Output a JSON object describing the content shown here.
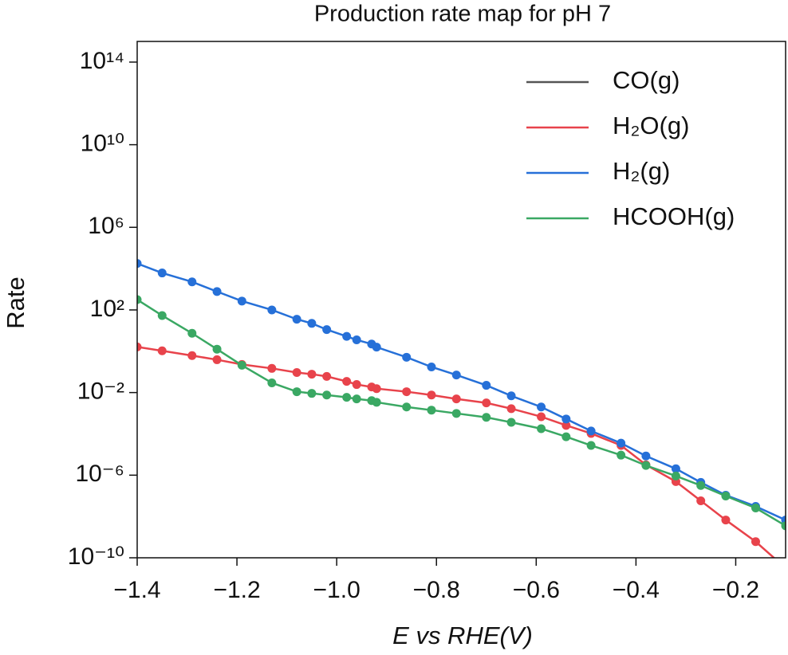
{
  "chart_data": {
    "type": "line",
    "title": "Production rate map for pH 7",
    "x_label": "E vs RHE(V)",
    "y_label": "Rate",
    "log_y": true,
    "legend": "upper right",
    "markers": true,
    "xlim": [
      -1.4,
      -0.1
    ],
    "xticks": [
      {
        "value": -1.4,
        "label": "−1.4"
      },
      {
        "value": -1.2,
        "label": "−1.2"
      },
      {
        "value": -1.0,
        "label": "−1.0"
      },
      {
        "value": -0.8,
        "label": "−0.8"
      },
      {
        "value": -0.6,
        "label": "−0.6"
      },
      {
        "value": -0.4,
        "label": "−0.4"
      },
      {
        "value": -0.2,
        "label": "−0.2"
      }
    ],
    "ylim": [
      1e-10,
      1000000000000000.0
    ],
    "yticks": [
      {
        "value": 1e-10,
        "label": "10⁻¹⁰"
      },
      {
        "value": 1e-06,
        "label": "10⁻⁶"
      },
      {
        "value": 0.01,
        "label": "10⁻²"
      },
      {
        "value": 100.0,
        "label": "10²"
      },
      {
        "value": 1000000.0,
        "label": "10⁶"
      },
      {
        "value": 10000000000.0,
        "label": "10¹⁰"
      },
      {
        "value": 100000000000000.0,
        "label": "10¹⁴"
      }
    ],
    "x": [
      -1.4,
      -1.35,
      -1.29,
      -1.24,
      -1.19,
      -1.13,
      -1.08,
      -1.05,
      -1.02,
      -0.98,
      -0.96,
      -0.93,
      -0.92,
      -0.86,
      -0.81,
      -0.76,
      -0.7,
      -0.65,
      -0.59,
      -0.54,
      -0.49,
      -0.43,
      -0.38,
      -0.32,
      -0.27,
      -0.22,
      -0.16,
      -0.1
    ],
    "series": [
      {
        "name": "CO(g)",
        "color": "#555555",
        "values": [
          null,
          null,
          null,
          null,
          null,
          null,
          null,
          null,
          null,
          null,
          null,
          null,
          null,
          null,
          null,
          null,
          null,
          null,
          null,
          null,
          null,
          null,
          null,
          null,
          null,
          null,
          null,
          null
        ]
      },
      {
        "name": "H₂O(g)",
        "color": "#e8434b",
        "values": [
          1.62,
          1.05,
          0.617,
          0.389,
          0.229,
          0.148,
          0.0933,
          0.0776,
          0.0603,
          0.0347,
          0.0245,
          0.0186,
          0.0155,
          0.011,
          0.00759,
          0.0049,
          0.00316,
          0.00166,
          0.000676,
          0.000257,
          0.000105,
          2.75e-05,
          3.16e-06,
          4.9e-07,
          5.75e-08,
          6.76e-09,
          6.03e-10,
          3.16e-11
        ]
      },
      {
        "name": "H₂(g)",
        "color": "#2670d8",
        "values": [
          17800.0,
          6170.0,
          2290.0,
          776,
          269,
          100,
          35.5,
          22.4,
          11.2,
          5.25,
          3.55,
          2.24,
          1.58,
          0.513,
          0.174,
          0.0708,
          0.0224,
          0.00692,
          0.002,
          0.000525,
          0.000138,
          3.55e-05,
          8.51e-06,
          2.04e-06,
          4.47e-07,
          1.07e-07,
          3.09e-08,
          6.76e-09
        ]
      },
      {
        "name": "HCOOH(g)",
        "color": "#3aa863",
        "values": [
          316,
          53.7,
          7.41,
          1.26,
          0.209,
          0.0295,
          0.011,
          0.00912,
          0.00759,
          0.00589,
          0.0049,
          0.00407,
          0.00339,
          0.002,
          0.00141,
          0.000977,
          0.000631,
          0.000363,
          0.000178,
          7.24e-05,
          2.75e-05,
          9.33e-06,
          2.95e-06,
          9.12e-07,
          3.16e-07,
          9.77e-08,
          2.57e-08,
          3.55e-09
        ]
      }
    ]
  }
}
